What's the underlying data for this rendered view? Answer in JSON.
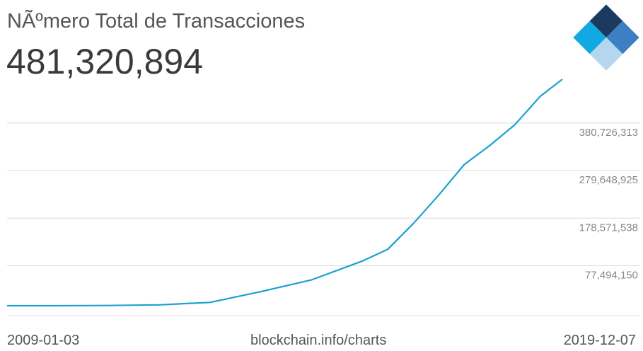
{
  "header": {
    "title": "NÃºmero Total de Transacciones",
    "total": "481,320,894"
  },
  "footer": {
    "start_date": "2009-01-03",
    "source": "blockchain.info/charts",
    "end_date": "2019-12-07"
  },
  "logo": {
    "icon": "blockchain-logo-icon",
    "colors": [
      "#1b3a5f",
      "#3d7fc4",
      "#11a9e1",
      "#b4d6ee"
    ]
  },
  "colors": {
    "line": "#1aa1cf",
    "grid": "#dcdcdc",
    "label": "#888888"
  },
  "chart_data": {
    "type": "line",
    "title": "NÃºmero Total de Transacciones",
    "xlabel": "",
    "ylabel": "",
    "xlim": [
      "2009-01-03",
      "2019-12-07"
    ],
    "ylim": [
      0,
      481320894
    ],
    "y_ticks": [
      77494150,
      178571538,
      279648925,
      380726313
    ],
    "y_tick_labels": [
      "77,494,150",
      "178,571,538",
      "279,648,925",
      "380,726,313"
    ],
    "grid": true,
    "series": [
      {
        "values": [
          {
            "x": "2009-01-03",
            "y": 0
          },
          {
            "x": "2010-01-01",
            "y": 50000
          },
          {
            "x": "2011-01-01",
            "y": 500000
          },
          {
            "x": "2012-01-01",
            "y": 1800000
          },
          {
            "x": "2013-01-01",
            "y": 7000000
          },
          {
            "x": "2014-01-01",
            "y": 30000000
          },
          {
            "x": "2015-01-01",
            "y": 55000000
          },
          {
            "x": "2016-01-01",
            "y": 95000000
          },
          {
            "x": "2016-07-01",
            "y": 120000000
          },
          {
            "x": "2017-01-01",
            "y": 175000000
          },
          {
            "x": "2017-07-01",
            "y": 235000000
          },
          {
            "x": "2018-01-01",
            "y": 300000000
          },
          {
            "x": "2018-07-01",
            "y": 340000000
          },
          {
            "x": "2019-01-01",
            "y": 385000000
          },
          {
            "x": "2019-07-01",
            "y": 445000000
          },
          {
            "x": "2019-12-07",
            "y": 481320894
          }
        ]
      }
    ]
  }
}
